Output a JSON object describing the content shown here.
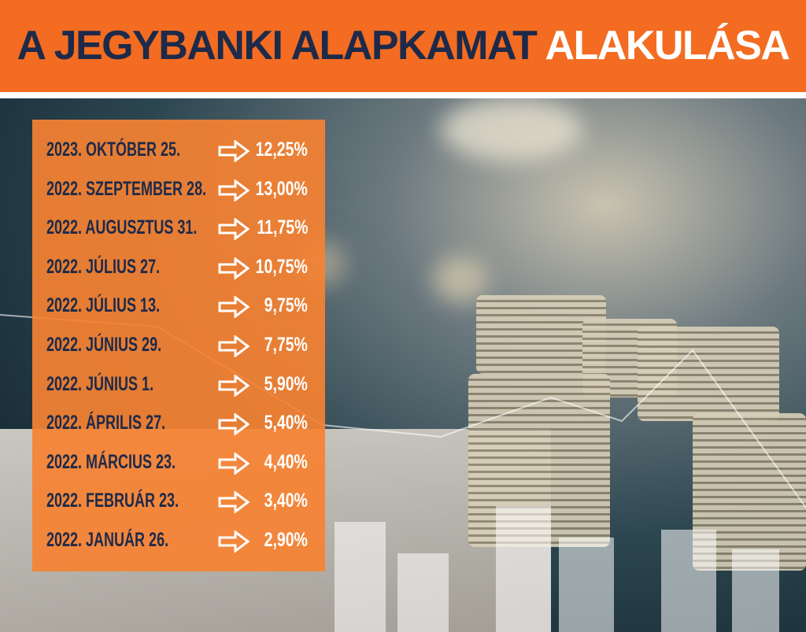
{
  "header": {
    "title_part1": "A JEGYBANKI ALAPKAMAT",
    "title_part2": "ALAKULÁSA"
  },
  "colors": {
    "accent": "#f36c21",
    "text_dark": "#1d2a4a",
    "text_light": "#ffffff"
  },
  "icons": {
    "row_arrow": "arrow-right-outline-icon"
  },
  "rates": [
    {
      "date": "2023. OKTÓBER 25.",
      "rate": "12,25%"
    },
    {
      "date": "2022. SZEPTEMBER 28.",
      "rate": "13,00%"
    },
    {
      "date": "2022. AUGUSZTUS 31.",
      "rate": "11,75%"
    },
    {
      "date": "2022. JÚLIUS 27.",
      "rate": "10,75%"
    },
    {
      "date": "2022. JÚLIUS 13.",
      "rate": "9,75%"
    },
    {
      "date": "2022. JÚNIUS 29.",
      "rate": "7,75%"
    },
    {
      "date": "2022. JÚNIUS 1.",
      "rate": "5,90%"
    },
    {
      "date": "2022. ÁPRILIS 27.",
      "rate": "5,40%"
    },
    {
      "date": "2022. MÁRCIUS 23.",
      "rate": "4,40%"
    },
    {
      "date": "2022. FEBRUÁR 23.",
      "rate": "3,40%"
    },
    {
      "date": "2022. JANUÁR 26.",
      "rate": "2,90%"
    }
  ]
}
